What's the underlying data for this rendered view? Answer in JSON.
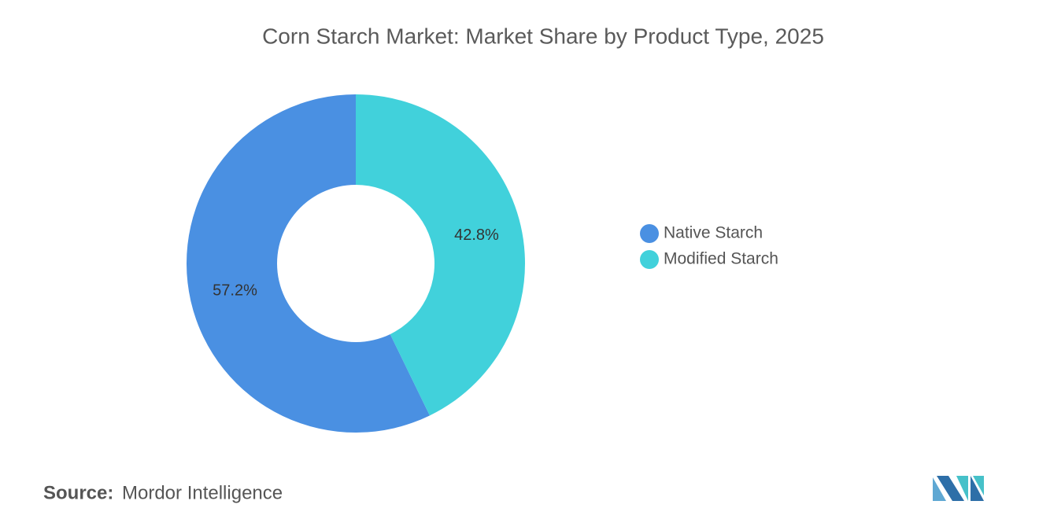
{
  "chart_data": {
    "type": "donut",
    "title": "Corn Starch Market: Market Share by Product Type, 2025",
    "categories": [
      "Native Starch",
      "Modified Starch"
    ],
    "values": [
      57.2,
      42.8
    ],
    "value_labels": [
      "57.2%",
      "42.8%"
    ],
    "colors": [
      "#4a90e2",
      "#41d1db"
    ],
    "source_label": "Source:",
    "source": "Mordor Intelligence"
  }
}
